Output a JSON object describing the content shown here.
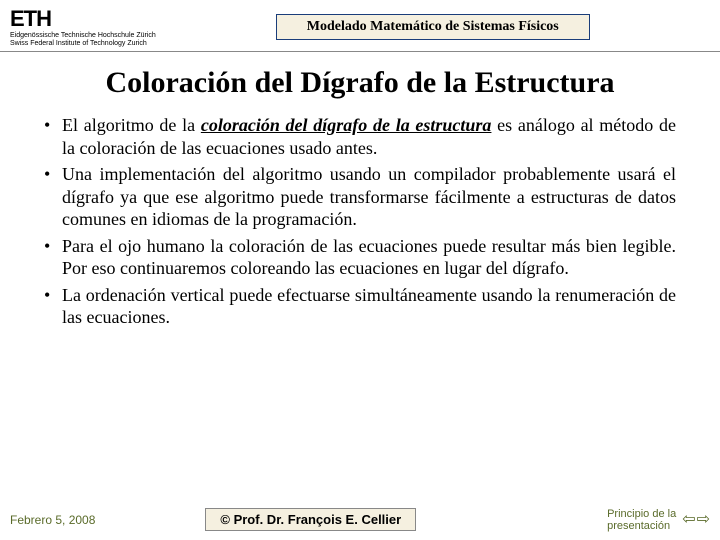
{
  "header": {
    "logo_main": "ETH",
    "logo_sub1": "Eidgenössische Technische Hochschule Zürich",
    "logo_sub2": "Swiss Federal Institute of Technology Zurich",
    "title": "Modelado Matemático de Sistemas Físicos"
  },
  "main_title": "Coloración del Dígrafo de la Estructura",
  "bullets": [
    {
      "pre": "El algoritmo de la ",
      "emph": "coloración del dígrafo de la estructura",
      "post": " es análogo al método de la coloración de las ecuaciones usado antes."
    },
    {
      "pre": "Una implementación del algoritmo usando un compilador probablemente usará el dígrafo ya que ese algoritmo puede transformarse fácilmente a estructuras de datos comunes en idiomas de la programación.",
      "emph": "",
      "post": ""
    },
    {
      "pre": "Para el ojo humano la coloración de las ecuaciones puede resultar más bien legible.  Por eso continuaremos coloreando las ecuaciones en lugar del dígrafo.",
      "emph": "",
      "post": ""
    },
    {
      "pre": "La ordenación vertical puede efectuarse simultáneamente usando la renumeración de las ecuaciones.",
      "emph": "",
      "post": ""
    }
  ],
  "footer": {
    "date": "Febrero 5, 2008",
    "author": "© Prof. Dr. François E. Cellier",
    "nav_text1": "Principio de la",
    "nav_text2": "presentación",
    "arrow_left": "⇦",
    "arrow_right": "⇨"
  },
  "colors": {
    "box_bg": "#f5f0e0",
    "box_border": "#1a3d7a",
    "olive": "#5a6b2a"
  }
}
